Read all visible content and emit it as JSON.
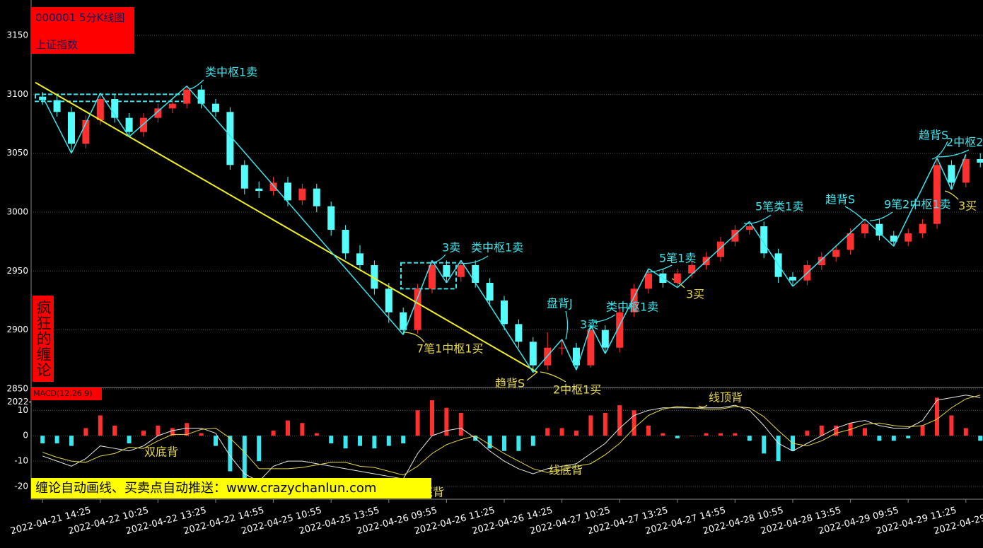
{
  "chart_data": [
    {
      "type": "candlestick",
      "title": "000001 5分K线图",
      "subtitle": "上证指数",
      "side_label": "疯狂的缠论",
      "banner": "缠论自动画线、买卖点自动推送：www.crazychanlun.com",
      "axis_fragment": "2022-",
      "categories": [
        "2022-04-21 14:25",
        null,
        null,
        null,
        "2022-04-22 10:25",
        null,
        null,
        null,
        "2022-04-22 13:25",
        null,
        null,
        null,
        "2022-04-22 14:55",
        null,
        null,
        null,
        "2022-04-25 10:55",
        null,
        null,
        null,
        "2022-04-25 13:55",
        null,
        null,
        null,
        "2022-04-26 09:55",
        null,
        null,
        null,
        "2022-04-26 11:25",
        null,
        null,
        null,
        "2022-04-26 14:25",
        null,
        null,
        null,
        "2022-04-27 10:25",
        null,
        null,
        null,
        "2022-04-27 13:25",
        null,
        null,
        null,
        "2022-04-27 14:55",
        null,
        null,
        null,
        "2022-04-28 10:55",
        null,
        null,
        null,
        "2022-04-28 13:55",
        null,
        null,
        null,
        "2022-04-29 09:55",
        null,
        null,
        null,
        "2022-04-29 11:25",
        null,
        null,
        null,
        "2022-04-29",
        null
      ],
      "open": [
        3098,
        3095,
        3085,
        3058,
        3078,
        3096,
        3080,
        3068,
        3080,
        3088,
        3092,
        3104,
        3092,
        3085,
        3040,
        3020,
        3018,
        3025,
        3010,
        3020,
        3005,
        2985,
        2965,
        2955,
        2935,
        2915,
        2900,
        2935,
        2955,
        2945,
        2955,
        2940,
        2925,
        2905,
        2890,
        2870,
        2885,
        2885,
        2870,
        2900,
        2885,
        2915,
        2935,
        2948,
        2940,
        2948,
        2955,
        2962,
        2975,
        2985,
        2988,
        2965,
        2945,
        2942,
        2955,
        2962,
        2968,
        2982,
        2990,
        2980,
        2975,
        2982,
        2990,
        3040,
        3025,
        3045
      ],
      "high": [
        3102,
        3099,
        3089,
        3082,
        3101,
        3100,
        3084,
        3084,
        3092,
        3096,
        3107,
        3108,
        3096,
        3089,
        3044,
        3026,
        3030,
        3030,
        3024,
        3024,
        3009,
        2989,
        2972,
        2959,
        2940,
        2919,
        2939,
        2959,
        2959,
        2959,
        2959,
        2944,
        2929,
        2909,
        2894,
        2898,
        2892,
        2889,
        2904,
        2904,
        2919,
        2939,
        2952,
        2952,
        2952,
        2959,
        2966,
        2979,
        2989,
        2992,
        2992,
        2969,
        2949,
        2959,
        2966,
        2972,
        2986,
        2994,
        2994,
        2984,
        2986,
        2994,
        3046,
        3044,
        3049,
        3050
      ],
      "low": [
        3091,
        3081,
        3050,
        3054,
        3074,
        3076,
        3064,
        3064,
        3076,
        3084,
        3088,
        3088,
        3081,
        3036,
        3015,
        3012,
        3014,
        3005,
        3006,
        3000,
        2980,
        2960,
        2950,
        2930,
        2906,
        2896,
        2897,
        2931,
        2940,
        2941,
        2936,
        2920,
        2900,
        2885,
        2864,
        2866,
        2879,
        2866,
        2868,
        2880,
        2881,
        2911,
        2931,
        2936,
        2936,
        2944,
        2951,
        2958,
        2971,
        2981,
        2961,
        2940,
        2937,
        2938,
        2951,
        2958,
        2964,
        2978,
        2976,
        2971,
        2971,
        2978,
        2986,
        3019,
        3021,
        3038
      ],
      "close": [
        3095,
        3085,
        3058,
        3078,
        3096,
        3080,
        3068,
        3080,
        3088,
        3092,
        3104,
        3092,
        3085,
        3040,
        3020,
        3018,
        3025,
        3010,
        3020,
        3005,
        2985,
        2965,
        2955,
        2935,
        2915,
        2900,
        2935,
        2955,
        2945,
        2955,
        2940,
        2925,
        2905,
        2890,
        2870,
        2885,
        2885,
        2870,
        2900,
        2885,
        2915,
        2935,
        2948,
        2940,
        2948,
        2955,
        2962,
        2975,
        2985,
        2988,
        2965,
        2945,
        2942,
        2955,
        2962,
        2968,
        2982,
        2990,
        2980,
        2975,
        2982,
        2990,
        3040,
        3025,
        3045,
        3042
      ],
      "up_color": "#ff3030",
      "down_color": "#54fcfc",
      "ylim": [
        2850,
        3174
      ],
      "yticks": [
        2850,
        2900,
        2950,
        3000,
        3050,
        3100,
        3150
      ],
      "grid": true,
      "strokes": {
        "color": "#3ce6ee",
        "values": [
          3098,
          null,
          3050,
          null,
          3101,
          null,
          3064,
          null,
          null,
          null,
          3107,
          null,
          null,
          null,
          null,
          null,
          null,
          null,
          null,
          null,
          null,
          null,
          null,
          null,
          null,
          2896,
          null,
          2959,
          2940,
          2959,
          null,
          null,
          null,
          null,
          2864,
          null,
          2892,
          2866,
          2904,
          2880,
          null,
          null,
          2952,
          null,
          2936,
          null,
          null,
          null,
          null,
          2992,
          null,
          null,
          2937,
          null,
          null,
          null,
          null,
          2994,
          null,
          2971,
          null,
          null,
          3046,
          3019,
          3049,
          null
        ]
      },
      "zones": {
        "color": "#3ce6ee",
        "items": [
          {
            "low": 3094,
            "high": 3100
          },
          {
            "low": 2935,
            "high": 2957
          }
        ]
      },
      "trendline": {
        "color": "#f0f020",
        "values": [
          3110,
          2864
        ]
      },
      "annotations": [
        {
          "text": "类中枢1卖",
          "color": "#3ce6ee"
        },
        {
          "text": "3卖",
          "color": "#3ce6ee"
        },
        {
          "text": "类中枢1卖",
          "color": "#3ce6ee"
        },
        {
          "text": "7笔1中枢1买",
          "color": "#e6d84a"
        },
        {
          "text": "趋背S",
          "color": "#e6d84a"
        },
        {
          "text": "2中枢1买",
          "color": "#e6d84a"
        },
        {
          "text": "盘背J",
          "color": "#3ce6ee"
        },
        {
          "text": "3卖",
          "color": "#3ce6ee"
        },
        {
          "text": "类中枢1卖",
          "color": "#3ce6ee"
        },
        {
          "text": "5笔1卖",
          "color": "#3ce6ee"
        },
        {
          "text": "3买",
          "color": "#e6d84a"
        },
        {
          "text": "5笔类1卖",
          "color": "#3ce6ee"
        },
        {
          "text": "趋背S",
          "color": "#3ce6ee"
        },
        {
          "text": "9笔2中枢1卖",
          "color": "#3ce6ee"
        },
        {
          "text": "趋背S",
          "color": "#3ce6ee"
        },
        {
          "text": "2中枢2",
          "color": "#3ce6ee"
        },
        {
          "text": "3买",
          "color": "#e6d84a"
        }
      ]
    },
    {
      "type": "macd",
      "title": "MACD(12,26,9)",
      "histogram": {
        "up_color": "#ff3030",
        "down_color": "#3ce6ee",
        "values": [
          -3,
          -3,
          -4,
          3,
          8,
          4,
          -3,
          2,
          4,
          3,
          5,
          1,
          -4,
          -14,
          -17,
          -10,
          2,
          6,
          5,
          1,
          -3,
          -5,
          -4,
          -5,
          -4,
          -3,
          10,
          14,
          11,
          9,
          -2,
          -5,
          -6,
          -6,
          -4,
          3,
          3,
          2,
          8,
          9,
          12,
          10,
          4,
          1,
          -1,
          0,
          1,
          1,
          1,
          -2,
          -7,
          -10,
          -6,
          2,
          4,
          4,
          5,
          3,
          -2,
          -2,
          -1,
          4,
          15,
          8,
          3,
          -2
        ]
      },
      "series": [
        {
          "color": "#e8e8e8",
          "values": [
            -8,
            -10,
            -12,
            -9,
            -4,
            -5,
            -6,
            -4,
            0,
            2,
            3,
            3,
            1,
            -8,
            -15,
            -18,
            -12,
            -10,
            -10,
            -11,
            -12,
            -13,
            -14,
            -15,
            -16,
            -17,
            -7,
            0,
            2,
            3,
            -1,
            -6,
            -10,
            -13,
            -15,
            -13,
            -12,
            -11,
            -7,
            -3,
            3,
            8,
            10,
            11,
            11,
            11,
            11,
            11,
            12,
            10,
            4,
            -3,
            -6,
            -3,
            0,
            3,
            5,
            6,
            4,
            3,
            3,
            6,
            14,
            15,
            16,
            15
          ]
        },
        {
          "color": "#e6d84a",
          "values": [
            -6.5,
            -8.5,
            -10,
            -10.5,
            -8,
            -7,
            -4.5,
            -5,
            -2,
            0.5,
            0.5,
            2.5,
            3,
            -1,
            -6.5,
            -13,
            -13,
            -13,
            -12.5,
            -11.5,
            -10.5,
            -10.5,
            -12,
            -12.5,
            -14,
            -15.5,
            -12,
            -7,
            -3.5,
            -1.5,
            0,
            -3.5,
            -7,
            -10,
            -13,
            -14.5,
            -13.5,
            -12,
            -11,
            -7.5,
            -3,
            3,
            8,
            10.5,
            11.5,
            11,
            10.5,
            10.5,
            11.5,
            11,
            7.5,
            2,
            -3,
            -4,
            -2,
            1,
            2.5,
            4.5,
            5,
            4,
            3.5,
            4,
            6.5,
            11,
            14.5,
            16
          ]
        }
      ],
      "ylim": [
        -25,
        19
      ],
      "yticks": [
        -20,
        -10,
        0,
        10
      ],
      "grid": true,
      "annotations": [
        {
          "text": "双底背",
          "color": "#e6d84a"
        },
        {
          "text": "底背",
          "color": "#e6d84a"
        },
        {
          "text": "线底背",
          "color": "#e6d84a"
        },
        {
          "text": "线顶背",
          "color": "#e6d84a"
        }
      ]
    }
  ]
}
